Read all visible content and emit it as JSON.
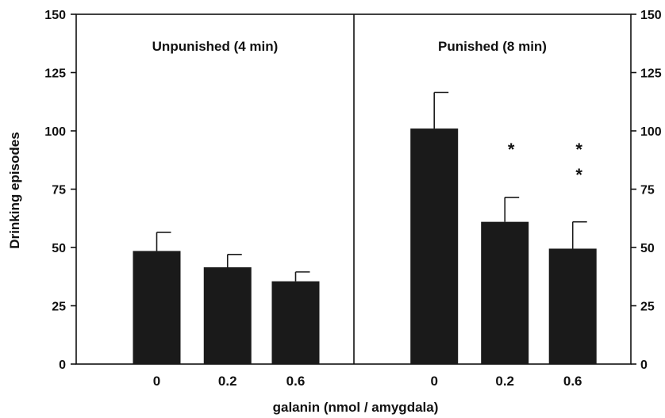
{
  "chart_data": {
    "type": "bar",
    "ylabel": "Drinking episodes",
    "xlabel": "galanin (nmol / amygdala)",
    "ylim": [
      0,
      150
    ],
    "yticks": [
      "0",
      "25",
      "50",
      "75",
      "100",
      "125",
      "150"
    ],
    "ytick_values": [
      0,
      25,
      50,
      75,
      100,
      125,
      150
    ],
    "right_axis_ticks": true,
    "panels": [
      {
        "title": "Unpunished (4 min)",
        "categories": [
          "0",
          "0.2",
          "0.6"
        ],
        "values": [
          48.5,
          41.5,
          35.5
        ],
        "errors": [
          8,
          5.5,
          4
        ],
        "significance": [
          "",
          "",
          ""
        ]
      },
      {
        "title": "Punished (8 min)",
        "categories": [
          "0",
          "0.2",
          "0.6"
        ],
        "values": [
          101,
          61,
          49.5
        ],
        "errors": [
          15.5,
          10.5,
          11.5
        ],
        "significance": [
          "",
          "*",
          "**"
        ]
      }
    ],
    "colors": {
      "bar": "#1a1a1a",
      "axis": "#111111"
    },
    "grid": false,
    "legend": "none"
  }
}
